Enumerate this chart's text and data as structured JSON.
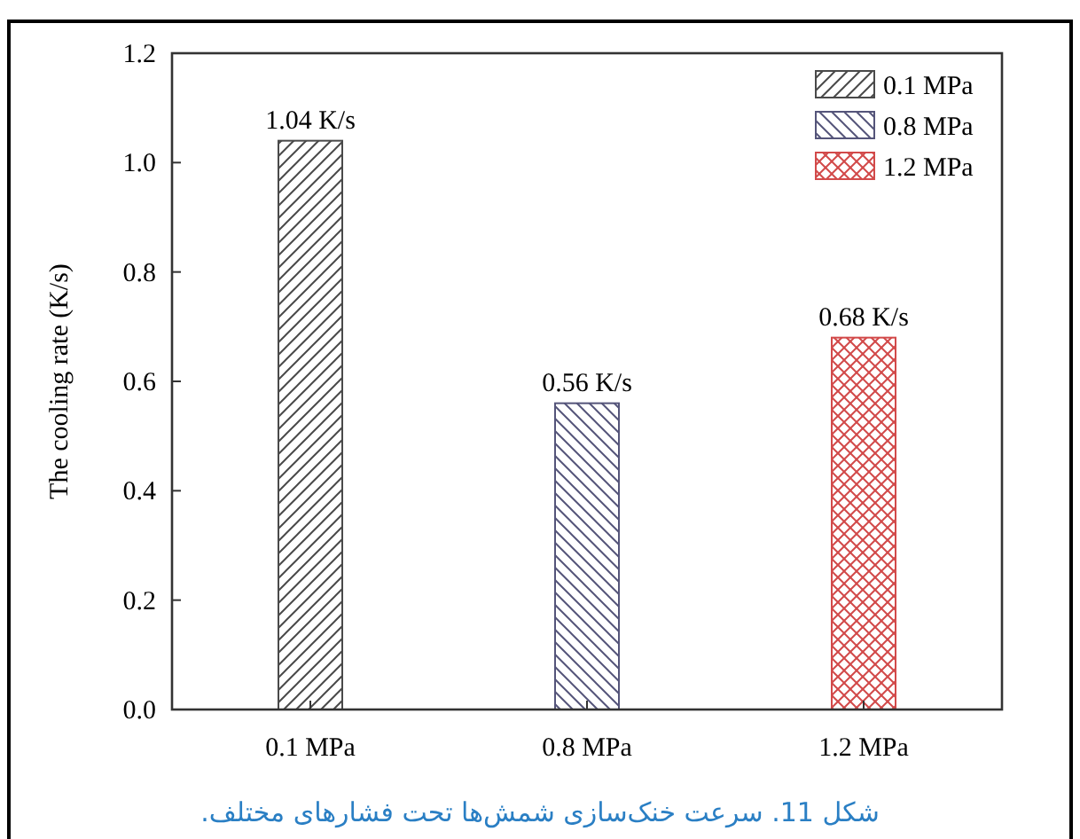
{
  "chart_data": {
    "type": "bar",
    "ylabel": "The cooling rate (K/s)",
    "categories": [
      "0.1 MPa",
      "0.8 MPa",
      "1.2 MPa"
    ],
    "series": [
      {
        "name": "0.1 MPa",
        "color": "#4a4a4a",
        "values": [
          1.04,
          null,
          null
        ],
        "value_labels": [
          "1.04 K/s",
          null,
          null
        ]
      },
      {
        "name": "0.8 MPa",
        "color": "#55557a",
        "values": [
          null,
          0.56,
          null
        ],
        "value_labels": [
          null,
          "0.56 K/s",
          null
        ]
      },
      {
        "name": "1.2 MPa",
        "color": "#d24a4a",
        "values": [
          null,
          null,
          0.68
        ],
        "value_labels": [
          null,
          null,
          "0.68 K/s"
        ]
      }
    ],
    "ylim": [
      0,
      1.2
    ],
    "yticks": [
      {
        "value": 0,
        "label": "0.0"
      },
      {
        "value": 0.2,
        "label": "0.2"
      },
      {
        "value": 0.4,
        "label": "0.4"
      },
      {
        "value": 0.6,
        "label": "0.6"
      },
      {
        "value": 0.8,
        "label": "0.8"
      },
      {
        "value": 1.0,
        "label": "1.0"
      },
      {
        "value": 1.2,
        "label": "1.2"
      }
    ],
    "legend": "top right",
    "grid": false,
    "annotations": [
      "شکل 11. سرعت خنک‌سازی شمش‌ها تحت فشارهای مختلف."
    ]
  }
}
